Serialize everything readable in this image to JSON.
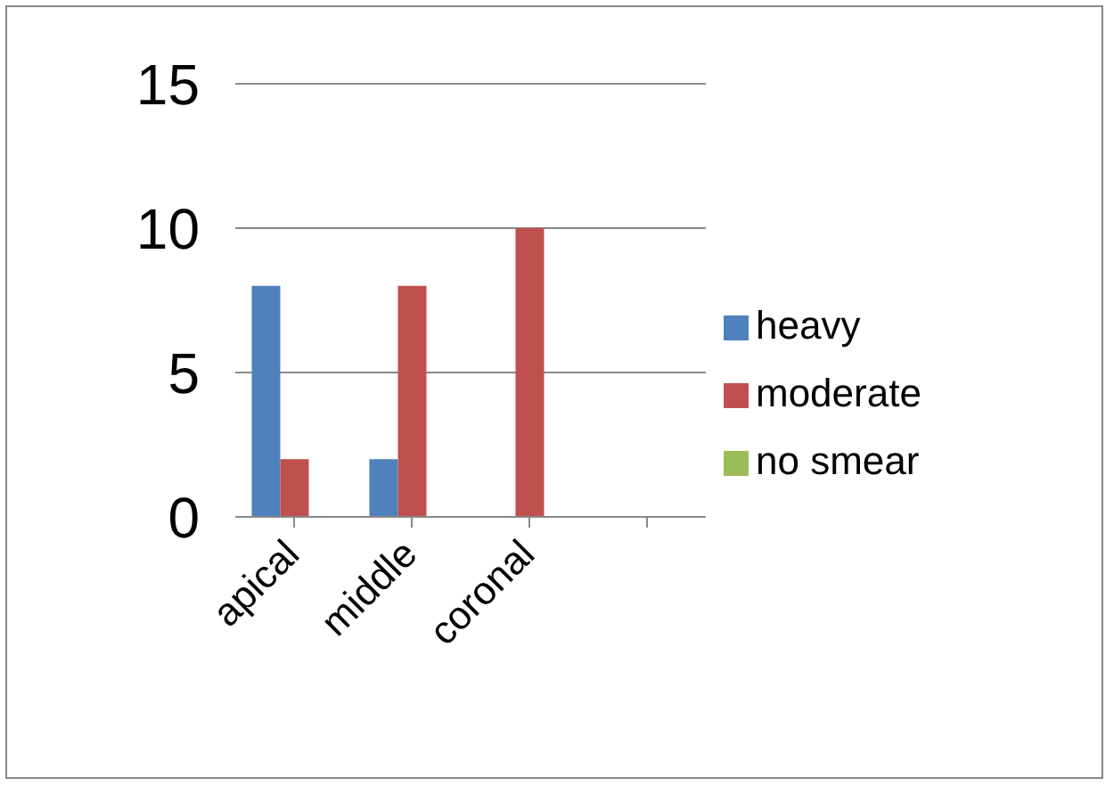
{
  "chart_data": {
    "type": "bar",
    "categories": [
      "apical",
      "middle",
      "coronal",
      null
    ],
    "series": [
      {
        "name": "heavy",
        "color": "#4f81bd",
        "values": [
          8,
          2,
          0,
          null
        ]
      },
      {
        "name": "moderate",
        "color": "#c0504d",
        "values": [
          2,
          8,
          10,
          null
        ]
      },
      {
        "name": "no smear",
        "color": "#9bbb59",
        "values": [
          0,
          0,
          0,
          null
        ]
      }
    ],
    "ylim": [
      0,
      15
    ],
    "yticks": [
      0,
      5,
      10,
      15
    ],
    "grid": "y",
    "legend": "right"
  }
}
